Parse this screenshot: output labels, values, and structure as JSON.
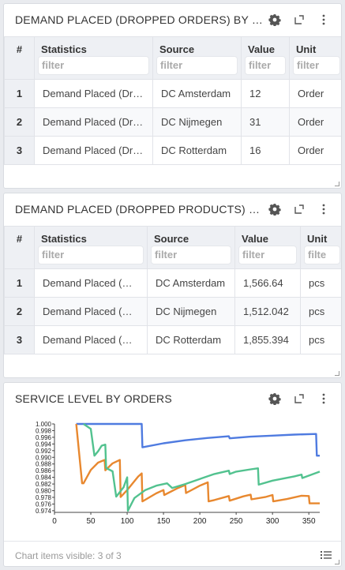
{
  "panels": {
    "orders": {
      "title": "DEMAND PLACED (DROPPED ORDERS) BY CUS...",
      "columns": [
        "#",
        "Statistics",
        "Source",
        "Value",
        "Unit"
      ],
      "filter_placeholder": "filter",
      "rows": [
        {
          "idx": "1",
          "stat": "Demand Placed (Dro...",
          "source": "DC Amsterdam",
          "value": "12",
          "unit": "Order"
        },
        {
          "idx": "2",
          "stat": "Demand Placed (Dro...",
          "source": "DC Nijmegen",
          "value": "31",
          "unit": "Order"
        },
        {
          "idx": "3",
          "stat": "Demand Placed (Dro...",
          "source": "DC Rotterdam",
          "value": "16",
          "unit": "Order"
        }
      ]
    },
    "products": {
      "title": "DEMAND PLACED (DROPPED PRODUCTS) BY ...",
      "columns": [
        "#",
        "Statistics",
        "Source",
        "Value",
        "Unit"
      ],
      "filter_placeholder": "filter",
      "unit_filter_placeholder": "filte",
      "rows": [
        {
          "idx": "1",
          "stat": "Demand Placed (Dr...",
          "source": "DC Amsterdam",
          "value": "1,566.64",
          "unit": "pcs"
        },
        {
          "idx": "2",
          "stat": "Demand Placed (Dr...",
          "source": "DC Nijmegen",
          "value": "1,512.042",
          "unit": "pcs"
        },
        {
          "idx": "3",
          "stat": "Demand Placed (Dr...",
          "source": "DC Rotterdam",
          "value": "1,855.394",
          "unit": "pcs"
        }
      ]
    },
    "service": {
      "title": "SERVICE LEVEL BY ORDERS",
      "footer": "Chart items visible: 3 of 3"
    }
  },
  "icons": {
    "settings": "gear-icon",
    "expand": "expand-icon",
    "menu": "more-vertical-icon",
    "legend": "list-icon"
  },
  "chart_data": {
    "type": "line",
    "title": "",
    "xlabel": "",
    "ylabel": "",
    "xlim": [
      0,
      365
    ],
    "ylim": [
      0.9735,
      1.0
    ],
    "x_ticks": [
      "0",
      "50",
      "100",
      "150",
      "200",
      "250",
      "300",
      "350"
    ],
    "y_ticks": [
      "1.000",
      "0.998",
      "0.996",
      "0.994",
      "0.992",
      "0.990",
      "0.988",
      "0.986",
      "0.984",
      "0.982",
      "0.980",
      "0.978",
      "0.976",
      "0.974"
    ],
    "grid": false,
    "series": [
      {
        "color": "#4f7be0",
        "points": [
          [
            30,
            1.0
          ],
          [
            120,
            1.0
          ],
          [
            121,
            0.993
          ],
          [
            150,
            0.9942
          ],
          [
            180,
            0.9951
          ],
          [
            210,
            0.9958
          ],
          [
            240,
            0.9963
          ],
          [
            241,
            0.9957
          ],
          [
            270,
            0.9962
          ],
          [
            300,
            0.9965
          ],
          [
            330,
            0.9968
          ],
          [
            360,
            0.997
          ],
          [
            361,
            0.9905
          ],
          [
            365,
            0.9905
          ]
        ]
      },
      {
        "color": "#e8882f",
        "points": [
          [
            30,
            1.0
          ],
          [
            38,
            0.9822
          ],
          [
            40,
            0.9822
          ],
          [
            50,
            0.9862
          ],
          [
            60,
            0.9884
          ],
          [
            69,
            0.9892
          ],
          [
            70,
            0.9861
          ],
          [
            80,
            0.9882
          ],
          [
            90,
            0.9892
          ],
          [
            91,
            0.9781
          ],
          [
            100,
            0.9802
          ],
          [
            115,
            0.9842
          ],
          [
            120,
            0.9852
          ],
          [
            121,
            0.9768
          ],
          [
            140,
            0.9792
          ],
          [
            150,
            0.9802
          ],
          [
            151,
            0.9787
          ],
          [
            170,
            0.9808
          ],
          [
            180,
            0.9817
          ],
          [
            181,
            0.9793
          ],
          [
            200,
            0.9815
          ],
          [
            211,
            0.9825
          ],
          [
            212,
            0.9768
          ],
          [
            220,
            0.9772
          ],
          [
            240,
            0.9784
          ],
          [
            241,
            0.977
          ],
          [
            260,
            0.9783
          ],
          [
            270,
            0.9788
          ],
          [
            271,
            0.9774
          ],
          [
            290,
            0.9781
          ],
          [
            300,
            0.9787
          ],
          [
            301,
            0.9768
          ],
          [
            320,
            0.9775
          ],
          [
            340,
            0.9785
          ],
          [
            350,
            0.9784
          ],
          [
            351,
            0.9762
          ],
          [
            365,
            0.9762
          ]
        ]
      },
      {
        "color": "#52c28f",
        "points": [
          [
            40,
            1.0
          ],
          [
            50,
            0.9985
          ],
          [
            55,
            0.9905
          ],
          [
            60,
            0.9918
          ],
          [
            65,
            0.9935
          ],
          [
            70,
            0.9938
          ],
          [
            71,
            0.9868
          ],
          [
            80,
            0.9858
          ],
          [
            85,
            0.9782
          ],
          [
            95,
            0.981
          ],
          [
            100,
            0.984
          ],
          [
            101,
            0.974
          ],
          [
            110,
            0.9778
          ],
          [
            125,
            0.9802
          ],
          [
            140,
            0.9815
          ],
          [
            155,
            0.9822
          ],
          [
            162,
            0.9808
          ],
          [
            180,
            0.982
          ],
          [
            200,
            0.9835
          ],
          [
            220,
            0.985
          ],
          [
            240,
            0.986
          ],
          [
            241,
            0.985
          ],
          [
            250,
            0.9857
          ],
          [
            270,
            0.9864
          ],
          [
            280,
            0.9867
          ],
          [
            281,
            0.9818
          ],
          [
            300,
            0.983
          ],
          [
            330,
            0.9843
          ],
          [
            340,
            0.9848
          ],
          [
            341,
            0.9838
          ],
          [
            365,
            0.9857
          ]
        ]
      }
    ]
  }
}
